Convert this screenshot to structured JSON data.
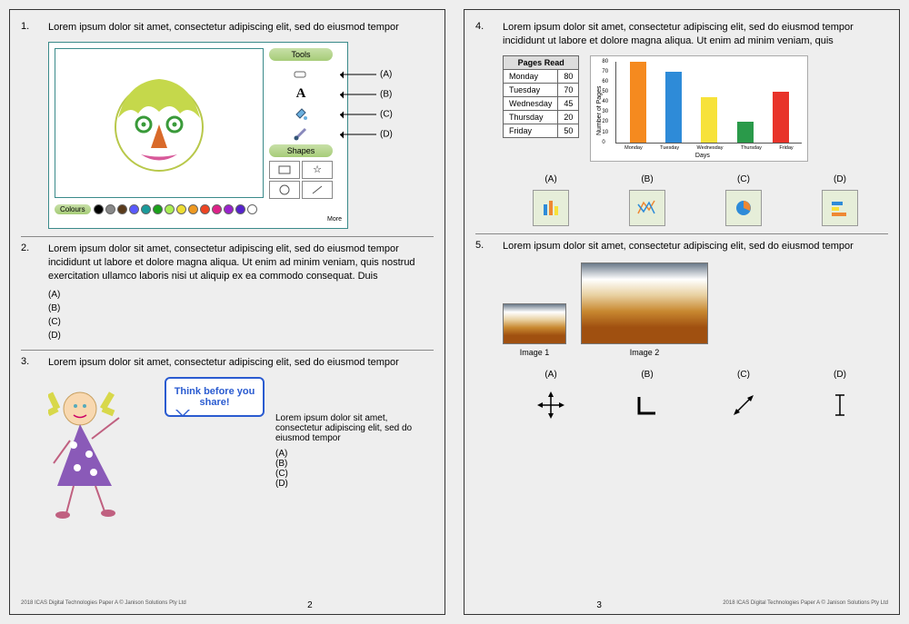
{
  "footer": {
    "copyright": "2018 ICAS Digital Technologies Paper A © Janison Solutions Pty Ltd",
    "page_left": "2",
    "page_right": "3"
  },
  "q1": {
    "num": "1.",
    "text": "Lorem ipsum dolor sit amet, consectetur adipiscing elit, sed do eiusmod tempor",
    "tools_label": "Tools",
    "shapes_label": "Shapes",
    "colours_label": "Colours",
    "more": "More",
    "labels": [
      "(A)",
      "(B)",
      "(C)",
      "(D)"
    ],
    "swatches": [
      "#000000",
      "#888888",
      "#5a3a1a",
      "#5a5aff",
      "#1a9a9a",
      "#1aa01a",
      "#aaee55",
      "#eedd33",
      "#ee9922",
      "#ee4422",
      "#dd2288",
      "#9922cc",
      "#5522cc",
      "#ffffff"
    ],
    "face": {
      "head_fill": "#ffffff",
      "hair": "#c5d84b",
      "eye": "#3a9a3a",
      "nose": "#d96a2a",
      "mouth": "#d85a9a"
    }
  },
  "q2": {
    "num": "2.",
    "text": "Lorem ipsum dolor sit amet, consectetur adipiscing elit, sed do eiusmod tempor incididunt ut labore et dolore magna aliqua. Ut enim ad minim veniam, quis nostrud exercitation ullamco laboris nisi ut aliquip ex ea commodo consequat. Duis",
    "options": [
      "(A)",
      "(B)",
      "(C)",
      "(D)"
    ]
  },
  "q3": {
    "num": "3.",
    "text": "Lorem ipsum dolor sit amet, consectetur adipiscing elit, sed do eiusmod tempor",
    "speech": "Think before you share!",
    "subtext": "Lorem ipsum dolor sit amet, consectetur adipiscing elit, sed do eiusmod tempor",
    "options": [
      "(A)",
      "(B)",
      "(C)",
      "(D)"
    ],
    "girl": {
      "dress": "#8a5ab8",
      "hair": "#d8d84a",
      "skin": "#f8d8b0",
      "dot": "#ffffff"
    }
  },
  "q4": {
    "num": "4.",
    "text": "Lorem ipsum dolor sit amet, consectetur adipiscing elit, sed do eiusmod tempor incididunt ut labore et dolore magna aliqua. Ut enim ad minim veniam, quis",
    "table_header": "Pages Read",
    "rows": [
      [
        "Monday",
        "80"
      ],
      [
        "Tuesday",
        "70"
      ],
      [
        "Wednesday",
        "45"
      ],
      [
        "Thursday",
        "20"
      ],
      [
        "Friday",
        "50"
      ]
    ],
    "chart": {
      "ylabel": "Number of Pages",
      "xlabel": "Days",
      "categories": [
        "Monday",
        "Tuesday",
        "Wednesday",
        "Thursday",
        "Friday"
      ],
      "values": [
        80,
        70,
        45,
        20,
        50
      ],
      "colors": [
        "#f58a1f",
        "#2e8bd8",
        "#f7e23a",
        "#2a9a4a",
        "#e8332a"
      ],
      "ymax": 80,
      "ytick_step": 10,
      "yticks": [
        "0",
        "10",
        "20",
        "30",
        "40",
        "50",
        "60",
        "70",
        "80"
      ]
    },
    "opt_labels": [
      "(A)",
      "(B)",
      "(C)",
      "(D)"
    ]
  },
  "q5": {
    "num": "5.",
    "text": "Lorem ipsum dolor sit amet, consectetur adipiscing elit, sed do eiusmod tempor",
    "img1": "Image 1",
    "img2": "Image 2",
    "opt_labels": [
      "(A)",
      "(B)",
      "(C)",
      "(D)"
    ]
  }
}
